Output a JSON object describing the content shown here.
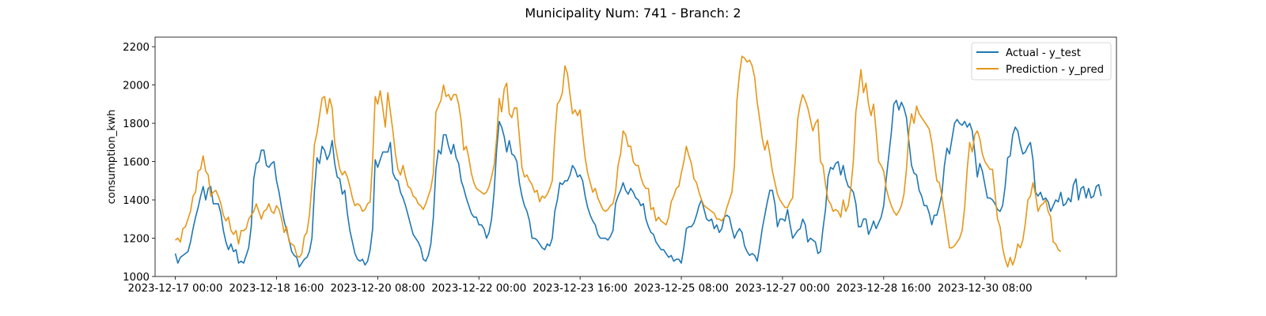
{
  "chart_data": {
    "type": "line",
    "title": "Municipality Num: 741 - Branch: 2",
    "xlabel": "",
    "ylabel": "consumption_kwh",
    "x_start": "2023-12-17 00:00",
    "x_step_hours": 1,
    "x_ticks": [
      {
        "value": "2023-12-17 00:00",
        "label": "2023-12-17 00:00"
      },
      {
        "value": "2023-12-18 16:00",
        "label": "2023-12-18 16:00"
      },
      {
        "value": "2023-12-20 08:00",
        "label": "2023-12-20 08:00"
      },
      {
        "value": "2023-12-22 00:00",
        "label": "2023-12-22 00:00"
      },
      {
        "value": "2023-12-23 16:00",
        "label": "2023-12-23 16:00"
      },
      {
        "value": "2023-12-25 08:00",
        "label": "2023-12-25 08:00"
      },
      {
        "value": "2023-12-27 00:00",
        "label": "2023-12-27 00:00"
      },
      {
        "value": "2023-12-28 16:00",
        "label": "2023-12-28 16:00"
      },
      {
        "value": "2023-12-30 08:00",
        "label": "2023-12-30 08:00"
      },
      {
        "value": "2024-01-01 00:00",
        "label": ""
      }
    ],
    "xlim": [
      "2023-12-16 16:00",
      "2024-01-01 12:00"
    ],
    "ylim": [
      1000,
      2250
    ],
    "y_ticks": [
      1000,
      1200,
      1400,
      1600,
      1800,
      2000,
      2200
    ],
    "grid": false,
    "legend_position": "upper right",
    "series": [
      {
        "name": "Actual - y_test",
        "color": "#1f77b4",
        "values": [
          1120,
          1070,
          1100,
          1110,
          1120,
          1130,
          1180,
          1250,
          1310,
          1360,
          1420,
          1470,
          1400,
          1460,
          1470,
          1380,
          1380,
          1380,
          1330,
          1240,
          1180,
          1140,
          1170,
          1130,
          1140,
          1070,
          1080,
          1070,
          1110,
          1150,
          1260,
          1510,
          1590,
          1600,
          1660,
          1660,
          1580,
          1570,
          1590,
          1600,
          1500,
          1440,
          1360,
          1290,
          1240,
          1190,
          1130,
          1110,
          1100,
          1050,
          1070,
          1090,
          1100,
          1130,
          1200,
          1450,
          1620,
          1590,
          1680,
          1660,
          1610,
          1640,
          1710,
          1590,
          1520,
          1510,
          1430,
          1450,
          1330,
          1240,
          1180,
          1120,
          1090,
          1080,
          1090,
          1060,
          1080,
          1140,
          1250,
          1610,
          1570,
          1610,
          1650,
          1650,
          1650,
          1700,
          1540,
          1510,
          1500,
          1440,
          1410,
          1370,
          1320,
          1270,
          1220,
          1200,
          1180,
          1150,
          1090,
          1080,
          1110,
          1170,
          1310,
          1560,
          1660,
          1640,
          1740,
          1740,
          1680,
          1640,
          1690,
          1620,
          1590,
          1500,
          1460,
          1410,
          1370,
          1330,
          1310,
          1310,
          1270,
          1270,
          1250,
          1200,
          1230,
          1300,
          1440,
          1660,
          1810,
          1780,
          1730,
          1650,
          1710,
          1640,
          1630,
          1600,
          1490,
          1420,
          1370,
          1340,
          1290,
          1200,
          1200,
          1190,
          1170,
          1150,
          1140,
          1170,
          1160,
          1200,
          1340,
          1400,
          1490,
          1480,
          1500,
          1500,
          1530,
          1580,
          1560,
          1520,
          1530,
          1500,
          1420,
          1360,
          1320,
          1290,
          1270,
          1220,
          1200,
          1200,
          1200,
          1190,
          1210,
          1240,
          1380,
          1420,
          1450,
          1490,
          1450,
          1430,
          1460,
          1440,
          1410,
          1400,
          1370,
          1380,
          1300,
          1260,
          1230,
          1220,
          1180,
          1160,
          1140,
          1140,
          1120,
          1100,
          1110,
          1080,
          1090,
          1090,
          1070,
          1150,
          1250,
          1260,
          1260,
          1280,
          1320,
          1370,
          1400,
          1350,
          1300,
          1290,
          1300,
          1250,
          1270,
          1230,
          1250,
          1310,
          1320,
          1310,
          1250,
          1200,
          1230,
          1250,
          1230,
          1160,
          1130,
          1110,
          1120,
          1110,
          1080,
          1160,
          1250,
          1320,
          1390,
          1450,
          1450,
          1380,
          1260,
          1300,
          1300,
          1290,
          1350,
          1270,
          1200,
          1220,
          1240,
          1250,
          1300,
          1270,
          1180,
          1200,
          1190,
          1180,
          1120,
          1130,
          1250,
          1350,
          1520,
          1570,
          1560,
          1590,
          1600,
          1530,
          1580,
          1510,
          1470,
          1460,
          1440,
          1380,
          1260,
          1260,
          1300,
          1300,
          1220,
          1250,
          1290,
          1250,
          1280,
          1310,
          1370,
          1510,
          1630,
          1750,
          1900,
          1920,
          1870,
          1910,
          1880,
          1830,
          1700,
          1580,
          1540,
          1530,
          1450,
          1420,
          1370,
          1370,
          1330,
          1270,
          1320,
          1320,
          1370,
          1430,
          1580,
          1670,
          1640,
          1720,
          1800,
          1820,
          1800,
          1790,
          1810,
          1780,
          1800,
          1760,
          1650,
          1520,
          1590,
          1550,
          1480,
          1410,
          1410,
          1400,
          1380,
          1350,
          1340,
          1370,
          1470,
          1620,
          1630,
          1740,
          1780,
          1760,
          1690,
          1640,
          1650,
          1680,
          1700,
          1610,
          1440,
          1420,
          1440,
          1400,
          1410,
          1390,
          1340,
          1370,
          1400,
          1390,
          1440,
          1370,
          1380,
          1410,
          1390,
          1480,
          1510,
          1400,
          1460,
          1470,
          1410,
          1460,
          1410,
          1420,
          1470,
          1480,
          1420
        ]
      },
      {
        "name": "Prediction - y_pred",
        "color": "#e69618",
        "values": [
          1190,
          1200,
          1180,
          1250,
          1260,
          1300,
          1340,
          1420,
          1440,
          1550,
          1560,
          1630,
          1550,
          1530,
          1420,
          1440,
          1450,
          1420,
          1380,
          1320,
          1290,
          1310,
          1240,
          1220,
          1240,
          1170,
          1240,
          1240,
          1250,
          1300,
          1320,
          1340,
          1380,
          1340,
          1300,
          1340,
          1350,
          1380,
          1340,
          1330,
          1370,
          1350,
          1300,
          1230,
          1260,
          1180,
          1170,
          1160,
          1110,
          1100,
          1120,
          1210,
          1230,
          1320,
          1480,
          1690,
          1750,
          1840,
          1930,
          1940,
          1850,
          1930,
          1880,
          1700,
          1630,
          1560,
          1530,
          1550,
          1520,
          1470,
          1410,
          1370,
          1380,
          1370,
          1340,
          1350,
          1380,
          1390,
          1610,
          1940,
          1900,
          1970,
          1880,
          1780,
          1960,
          1860,
          1760,
          1640,
          1560,
          1530,
          1580,
          1520,
          1470,
          1460,
          1420,
          1410,
          1380,
          1370,
          1350,
          1380,
          1420,
          1460,
          1540,
          1860,
          1890,
          1920,
          2000,
          1940,
          1950,
          1920,
          1950,
          1950,
          1900,
          1810,
          1660,
          1680,
          1620,
          1540,
          1490,
          1460,
          1450,
          1440,
          1430,
          1440,
          1470,
          1520,
          1580,
          1720,
          1930,
          1860,
          1980,
          2010,
          1850,
          1830,
          1880,
          1880,
          1730,
          1570,
          1520,
          1530,
          1500,
          1480,
          1440,
          1450,
          1390,
          1420,
          1410,
          1430,
          1460,
          1500,
          1730,
          1900,
          1920,
          1960,
          2100,
          2060,
          1950,
          1850,
          1870,
          1840,
          1870,
          1740,
          1620,
          1540,
          1490,
          1440,
          1460,
          1410,
          1380,
          1350,
          1340,
          1350,
          1370,
          1380,
          1440,
          1580,
          1640,
          1760,
          1740,
          1680,
          1680,
          1600,
          1580,
          1580,
          1520,
          1480,
          1460,
          1460,
          1350,
          1360,
          1290,
          1310,
          1290,
          1280,
          1270,
          1310,
          1390,
          1420,
          1460,
          1470,
          1540,
          1600,
          1680,
          1630,
          1590,
          1510,
          1490,
          1440,
          1400,
          1370,
          1360,
          1350,
          1340,
          1330,
          1300,
          1300,
          1290,
          1310,
          1360,
          1400,
          1440,
          1580,
          1920,
          2060,
          2150,
          2140,
          2120,
          2130,
          2100,
          2040,
          1910,
          1820,
          1720,
          1660,
          1710,
          1640,
          1550,
          1490,
          1430,
          1400,
          1380,
          1360,
          1360,
          1390,
          1410,
          1600,
          1820,
          1900,
          1950,
          1920,
          1880,
          1820,
          1760,
          1800,
          1820,
          1600,
          1580,
          1480,
          1400,
          1380,
          1340,
          1350,
          1340,
          1310,
          1400,
          1340,
          1370,
          1460,
          1600,
          1860,
          1960,
          2080,
          1960,
          2010,
          1900,
          1840,
          1900,
          1760,
          1600,
          1580,
          1550,
          1460,
          1410,
          1370,
          1340,
          1320,
          1340,
          1370,
          1430,
          1560,
          1760,
          1850,
          1800,
          1890,
          1850,
          1830,
          1810,
          1790,
          1770,
          1700,
          1600,
          1500,
          1490,
          1420,
          1330,
          1240,
          1150,
          1150,
          1160,
          1180,
          1200,
          1240,
          1360,
          1560,
          1700,
          1650,
          1740,
          1760,
          1720,
          1640,
          1600,
          1580,
          1560,
          1560,
          1430,
          1300,
          1260,
          1150,
          1090,
          1050,
          1100,
          1060,
          1100,
          1170,
          1150,
          1190,
          1280,
          1400,
          1420,
          1490,
          1430,
          1340,
          1370,
          1380,
          1400,
          1340,
          1310,
          1180,
          1170,
          1140,
          1130
        ]
      }
    ]
  }
}
